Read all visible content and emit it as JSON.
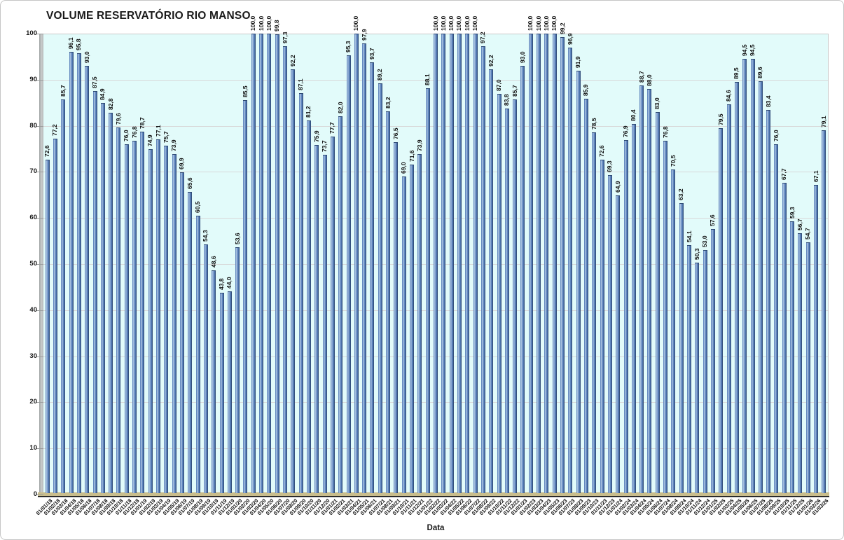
{
  "chart_data": {
    "type": "bar",
    "title": "VOLUME RESERVATÓRIO RIO MANSO",
    "xlabel": "Data",
    "ylabel": "",
    "ylim": [
      0,
      100
    ],
    "yticks": [
      0,
      10,
      20,
      30,
      40,
      50,
      60,
      70,
      80,
      90,
      100
    ],
    "grid": true,
    "legend_position": "none",
    "decimal_separator": ",",
    "value_label_decimals": 1,
    "categories": [
      "01/01/18",
      "01/02/18",
      "01/03/18",
      "01/04/18",
      "01/05/18",
      "01/06/18",
      "01/07/18",
      "01/08/18",
      "01/09/18",
      "01/10/18",
      "01/11/18",
      "01/12/18",
      "01/01/19",
      "01/02/19",
      "01/03/19",
      "01/04/19",
      "01/05/19",
      "01/06/19",
      "01/07/19",
      "01/08/19",
      "01/09/19",
      "01/10/19",
      "01/11/19",
      "01/12/19",
      "01/01/20",
      "01/02/20",
      "01/03/20",
      "01/04/20",
      "01/05/20",
      "01/06/20",
      "01/07/20",
      "01/08/20",
      "01/09/20",
      "01/10/20",
      "01/11/20",
      "01/12/20",
      "01/01/21",
      "01/02/21",
      "01/03/21",
      "01/04/21",
      "01/05/21",
      "01/06/21",
      "01/07/21",
      "01/08/21",
      "01/09/21",
      "01/10/21",
      "01/11/21",
      "01/12/21",
      "01/01/22",
      "01/02/22",
      "01/03/22",
      "01/04/22",
      "01/05/22",
      "01/06/22",
      "01/07/22",
      "01/08/22",
      "01/09/22",
      "01/10/22",
      "01/11/22",
      "01/12/22",
      "01/01/23",
      "01/02/23",
      "01/03/23",
      "01/04/23",
      "01/05/23",
      "01/06/23",
      "01/07/23",
      "01/08/23",
      "01/09/23",
      "01/10/23",
      "01/11/23",
      "01/12/23",
      "01/01/24",
      "01/02/24",
      "01/03/24",
      "01/04/24",
      "01/05/24",
      "01/06/24",
      "01/07/24",
      "01/08/24",
      "01/09/24",
      "01/10/24",
      "01/11/24",
      "01/12/24",
      "01/01/25",
      "01/02/25",
      "01/03/25",
      "01/04/25",
      "01/05/25",
      "01/06/25",
      "01/07/25",
      "01/08/25",
      "01/09/25",
      "01/10/25",
      "01/11/25",
      "01/12/25",
      "01/01/26",
      "01/02/26",
      "01/03/26"
    ],
    "values": [
      72.6,
      77.2,
      85.7,
      96.1,
      95.8,
      93.0,
      87.5,
      84.9,
      82.8,
      79.6,
      76.0,
      76.8,
      78.7,
      74.9,
      77.1,
      75.7,
      73.9,
      69.9,
      65.6,
      60.5,
      54.3,
      48.6,
      43.8,
      44.0,
      53.6,
      85.5,
      100.0,
      100.0,
      100.0,
      99.8,
      97.3,
      92.2,
      87.1,
      81.2,
      75.9,
      73.7,
      77.7,
      82.0,
      95.3,
      100.0,
      97.9,
      93.7,
      89.2,
      83.2,
      76.5,
      69.0,
      71.6,
      73.9,
      88.1,
      100.0,
      100.0,
      100.0,
      100.0,
      100.0,
      100.0,
      97.2,
      92.2,
      87.0,
      83.8,
      85.7,
      93.0,
      100.0,
      100.0,
      100.0,
      100.0,
      99.2,
      96.9,
      91.9,
      85.9,
      78.5,
      72.6,
      69.3,
      64.9,
      76.9,
      80.4,
      88.7,
      88.0,
      83.0,
      76.8,
      70.5,
      63.2,
      54.1,
      50.3,
      53.0,
      57.6,
      79.5,
      84.6,
      89.5,
      94.5,
      94.5,
      89.6,
      83.4,
      76.0,
      67.7,
      59.3,
      56.7,
      54.7,
      67.1,
      79.1
    ],
    "colors": {
      "plot_bg": "#e2fbfa",
      "bar_body": "#5b82be",
      "bar_highlight": "#b7cce6",
      "bar_shadow": "#2b4266",
      "gridline": "#d8d8d8",
      "wall": "#b5b8b8",
      "floor": "#c9bd8c",
      "canvas_bg": "#ffffff",
      "text": "#1a1a1a"
    }
  }
}
